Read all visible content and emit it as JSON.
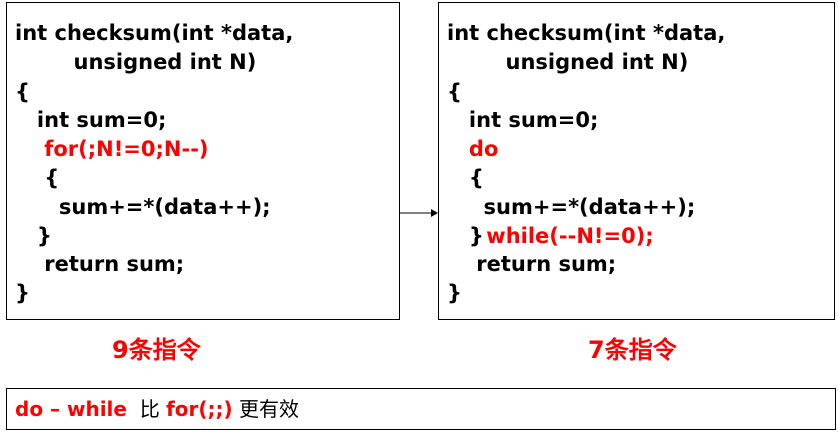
{
  "left_panel": {
    "lines": [
      "int checksum(int *data,",
      "        unsigned int N)",
      "{",
      "   int sum=0;",
      "    for(;N!=0;N--)",
      "    {",
      "      sum+=*(data++);",
      "   }",
      "    return sum;",
      "}"
    ],
    "caption": "9条指令"
  },
  "right_panel": {
    "lines": [
      "int checksum(int *data,",
      "        unsigned int N)",
      "{",
      "   int sum=0;",
      "   do",
      "   {",
      "     sum+=*(data++);",
      "   }",
      " while(--N!=0);",
      "    return sum;",
      "}"
    ],
    "caption": "7条指令"
  },
  "note": {
    "part1": "do – while",
    "part2": "  比 ",
    "part3": "for(;;)",
    "part4": " 更有效"
  },
  "colors": {
    "highlight": "#ff0000",
    "text": "#000000",
    "border": "#000000"
  }
}
